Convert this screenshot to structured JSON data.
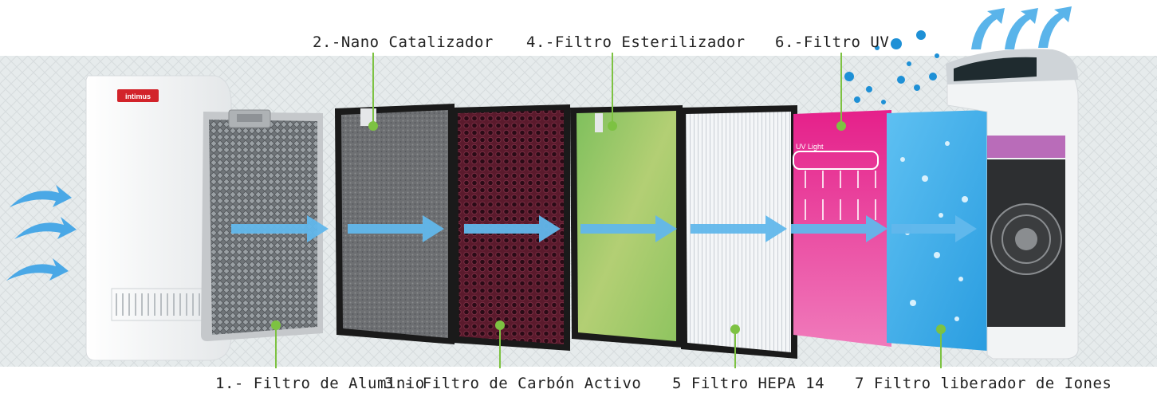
{
  "brand": {
    "logo_text": "intimus",
    "logo_color": "#d2232a"
  },
  "colors": {
    "leader": "#7dc242",
    "airflow": "#5fb6ea"
  },
  "uv_panel": {
    "caption": "UV Light"
  },
  "labels": {
    "l1": "1.- Filtro de Aluminio",
    "l2": "2.-Nano Catalizador",
    "l3": "3.- Filtro de Carbón Activo",
    "l4": "4.-Filtro Esterilizador",
    "l5": "5 Filtro HEPA 14",
    "l6": "6.-Filtro UV",
    "l7": "7 Filtro liberador de Iones"
  }
}
